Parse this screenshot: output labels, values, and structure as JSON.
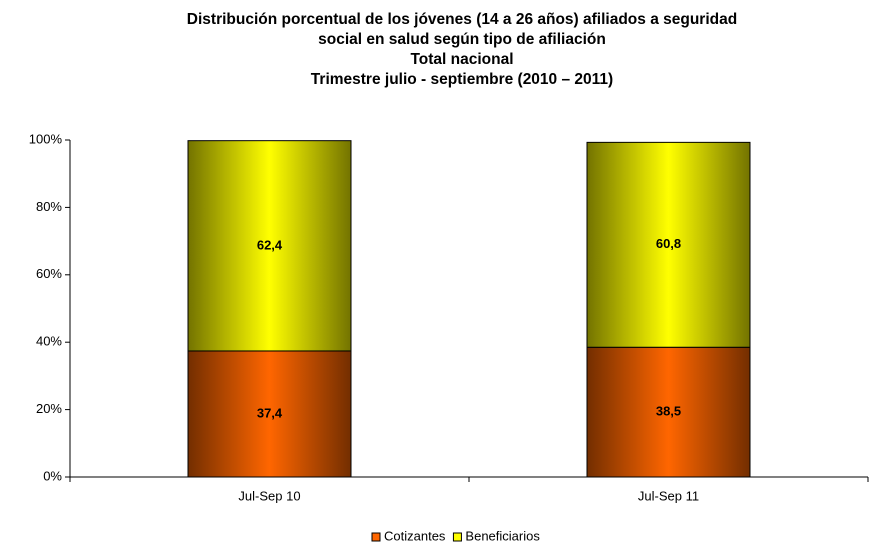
{
  "chart_data": {
    "type": "bar",
    "stacked": true,
    "title": [
      "Distribución porcentual de los jóvenes (14 a 26 años) afiliados a seguridad",
      "social en salud según tipo de afiliación",
      "Total nacional",
      "Trimestre  julio - septiembre (2010 – 2011)"
    ],
    "categories": [
      "Jul-Sep 10",
      "Jul-Sep 11"
    ],
    "series": [
      {
        "name": "Cotizantes",
        "color": "#ff6600",
        "values": [
          37.4,
          38.5
        ],
        "value_labels": [
          "37,4",
          "38,5"
        ]
      },
      {
        "name": "Beneficiarios",
        "color": "#ffff00",
        "values": [
          62.4,
          60.8
        ],
        "value_labels": [
          "62,4",
          "60,8"
        ]
      }
    ],
    "ylim": [
      0,
      100
    ],
    "yticks": [
      {
        "value": 0,
        "label": "0%"
      },
      {
        "value": 20,
        "label": "20%"
      },
      {
        "value": 40,
        "label": "40%"
      },
      {
        "value": 60,
        "label": "60%"
      },
      {
        "value": 80,
        "label": "80%"
      },
      {
        "value": 100,
        "label": "100%"
      }
    ],
    "legend": "bottom"
  }
}
